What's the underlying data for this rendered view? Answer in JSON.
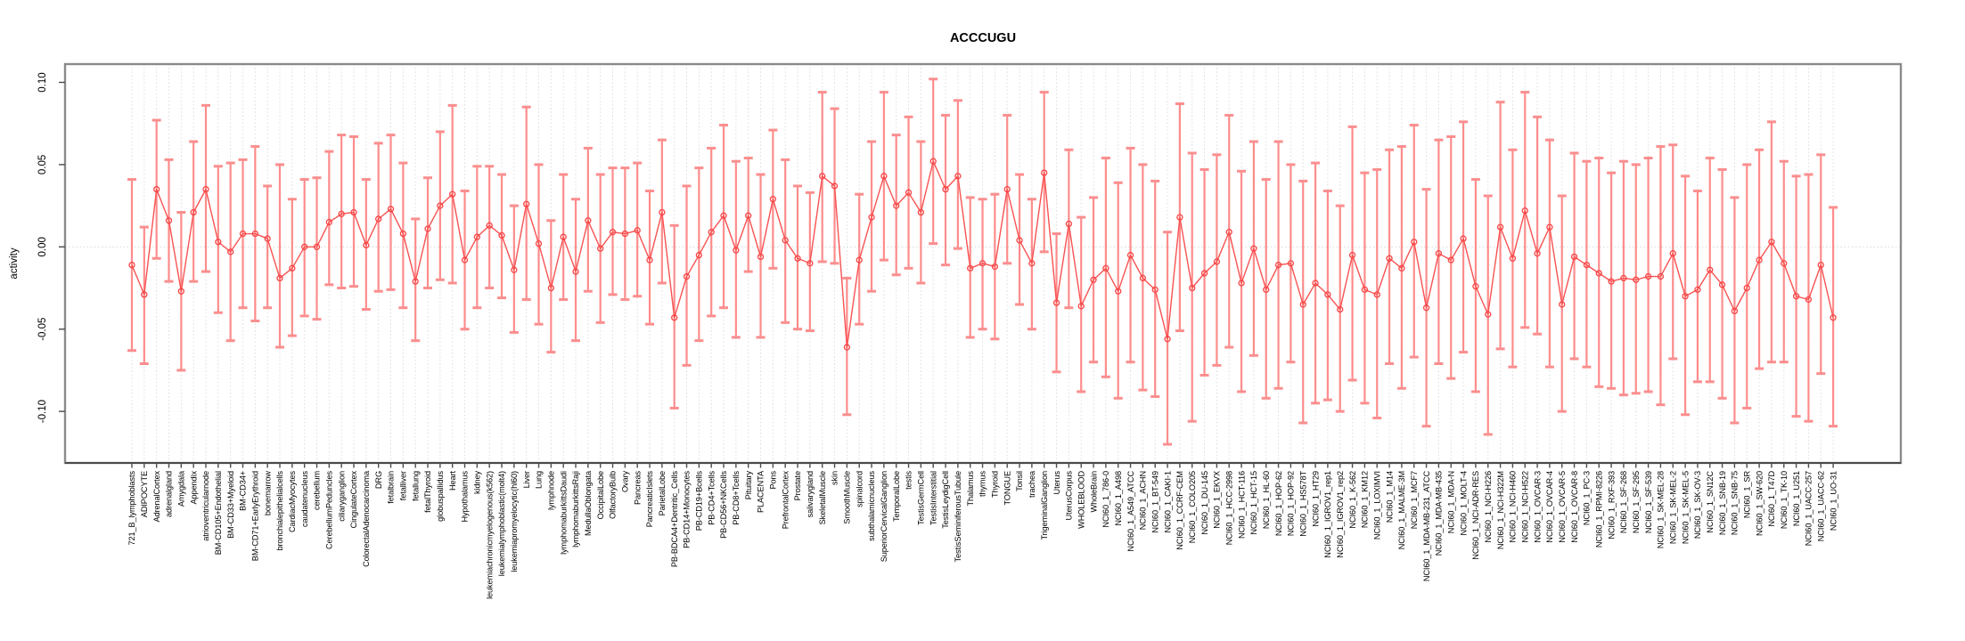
{
  "title": "ACCCUGU",
  "y_axis": {
    "label": "activity",
    "ticks": [
      0.1,
      0.05,
      0.0,
      -0.05,
      -0.1
    ],
    "tick_labels": [
      "0.10",
      "0.05",
      "0.00",
      "-0.05",
      "-0.10"
    ]
  },
  "colors": {
    "series_line": "#f85252",
    "point_stroke": "#f74545",
    "error_bar": "rgba(255,116,116,0.82)",
    "error_cap": "#fb8e8e",
    "grid": "#dcdcdc",
    "axis_box": "#8a8a8a",
    "background": "#ffffff"
  },
  "chart_data": {
    "type": "line",
    "error_bars": true,
    "title": "ACCCUGU",
    "xlabel": "",
    "ylabel": "activity",
    "ylim": [
      -0.13,
      0.11
    ],
    "grid": "vertical-dotted-per-category",
    "categories": [
      "721_B_lymphoblasts",
      "ADIPOCYTE",
      "AdrenalCortex",
      "adrenalgland",
      "Amygdala",
      "Appendix",
      "atrioventricularnode",
      "BM-CD105+Endothelial",
      "BM-CD33+Myeloid",
      "BM-CD34+",
      "BM-CD71+EarlyErythroid",
      "bonemarrow",
      "bronchialepithelialcells",
      "CardiacMyocytes",
      "caudatenucleus",
      "cerebellum",
      "CerebellumPeduncles",
      "ciliaryganglion",
      "CingulateCortex",
      "ColorectalAdenocarcinoma",
      "DRG",
      "fetalbrain",
      "fetalliver",
      "fetallung",
      "fetalThyroid",
      "globuspallidus",
      "Heart",
      "Hypothalamus",
      "kidney",
      "leukemiachronicmyelogenous(k562)",
      "leukemialymphoblastic(molt4)",
      "leukemiapromyelocytic(hl60)",
      "Liver",
      "Lung",
      "lymphnode",
      "lymphomaburkittsDaudi",
      "lymphomaburkittsRaji",
      "MedullaOblongata",
      "OccipitalLobe",
      "OlfactoryBulb",
      "Ovary",
      "Pancreas",
      "PancreaticIslets",
      "ParietalLobe",
      "PB-BDCA4+Dentritic_Cells",
      "PB-CD14+Monocytes",
      "PB-CD19+Bcells",
      "PB-CD4+Tcells",
      "PB-CD56+NKCells",
      "PB-CD8+Tcells",
      "Pituitary",
      "PLACENTA",
      "Pons",
      "PrefrontalCortex",
      "Prostate",
      "salivarygland",
      "SkeletalMuscle",
      "skin",
      "SmoothMuscle",
      "spinalcord",
      "subthalamicnucleus",
      "SuperiorCervicalGanglion",
      "TemporalLobe",
      "testis",
      "TestisGermCell",
      "TestisInterstitial",
      "TestisLeydigCell",
      "TestisSeminiferousTubule",
      "Thalamus",
      "thymus",
      "Thyroid",
      "TONGUE",
      "Tonsil",
      "trachea",
      "TrigeminalGanglion",
      "Uterus",
      "UterusCorpus",
      "WHOLEBLOOD",
      "WholeBrain",
      "NCI60_1_786-0",
      "NCI60_1_A498",
      "NCI60_1_A549_ATCC",
      "NCI60_1_ACHN",
      "NCI60_1_BT-549",
      "NCI60_1_CAKI-1",
      "NCI60_1_CCRF-CEM",
      "NCI60_1_COLO205",
      "NCI60_1_DU-145",
      "NCI60_1_EKVX",
      "NCI60_1_HCC-2998",
      "NCI60_1_HCT-116",
      "NCI60_1_HCT-15",
      "NCI60_1_HL-60",
      "NCI60_1_HOP-62",
      "NCI60_1_HOP-92",
      "NCI60_1_HS578T",
      "NCI60_1_HT29",
      "NCI60_1_IGROV1_rep1",
      "NCI60_1_IGROV1_rep2",
      "NCI60_1_K-562",
      "NCI60_1_KM12",
      "NCI60_1_LOXIMVI",
      "NCI60_1_M14",
      "NCI60_1_MALME-3M",
      "NCI60_1_MCF7",
      "NCI60_1_MDA-MB-231_ATCC",
      "NCI60_1_MDA-MB-435",
      "NCI60_1_MDA-N",
      "NCI60_1_MOLT-4",
      "NCI60_1_NCI-ADR-RES",
      "NCI60_1_NCI-H226",
      "NCI60_1_NCI-H322M",
      "NCI60_1_NCI-H460",
      "NCI60_1_NCI-H522",
      "NCI60_1_OVCAR-3",
      "NCI60_1_OVCAR-4",
      "NCI60_1_OVCAR-5",
      "NCI60_1_OVCAR-8",
      "NCI60_1_PC-3",
      "NCI60_1_RPMI-8226",
      "NCI60_1_RXF-393",
      "NCI60_1_SF-268",
      "NCI60_1_SF-295",
      "NCI60_1_SF-539",
      "NCI60_1_SK-MEL-28",
      "NCI60_1_SK-MEL-2",
      "NCI60_1_SK-MEL-5",
      "NCI60_1_SK-OV-3",
      "NCI60_1_SN12C",
      "NCI60_1_SNB-19",
      "NCI60_1_SNB-75",
      "NCI60_1_SR",
      "NCI60_1_SW-620",
      "NCI60_1_T47D",
      "NCI60_1_TK-10",
      "NCI60_1_U251",
      "NCI60_1_UACC-257",
      "NCI60_1_UACC-62",
      "NCI60_1_UO-31"
    ],
    "series": [
      {
        "name": "activity",
        "values": [
          -0.011,
          -0.029,
          0.035,
          0.016,
          -0.027,
          0.021,
          0.035,
          0.003,
          -0.003,
          0.008,
          0.008,
          0.005,
          -0.019,
          -0.013,
          0.0,
          0.0,
          0.015,
          0.02,
          0.021,
          0.001,
          0.017,
          0.023,
          0.008,
          -0.021,
          0.011,
          0.025,
          0.032,
          -0.008,
          0.006,
          0.013,
          0.007,
          -0.014,
          0.026,
          0.002,
          -0.025,
          0.006,
          -0.015,
          0.016,
          -0.001,
          0.009,
          0.008,
          0.01,
          -0.008,
          0.021,
          -0.043,
          -0.018,
          -0.005,
          0.009,
          0.019,
          -0.002,
          0.019,
          -0.006,
          0.029,
          0.004,
          -0.007,
          -0.01,
          0.043,
          0.037,
          -0.061,
          -0.008,
          0.018,
          0.043,
          0.025,
          0.033,
          0.021,
          0.052,
          0.035,
          0.043,
          -0.013,
          -0.01,
          -0.012,
          0.035,
          0.004,
          -0.01,
          0.045,
          -0.034,
          0.014,
          -0.036,
          -0.02,
          -0.013,
          -0.027,
          -0.005,
          -0.019,
          -0.026,
          -0.056,
          0.018,
          -0.025,
          -0.016,
          -0.009,
          0.009,
          -0.022,
          -0.001,
          -0.026,
          -0.011,
          -0.01,
          -0.035,
          -0.022,
          -0.029,
          -0.038,
          -0.005,
          -0.026,
          -0.029,
          -0.007,
          -0.013,
          0.003,
          -0.037,
          -0.004,
          -0.008,
          0.005,
          -0.024,
          -0.041,
          0.012,
          -0.007,
          0.022,
          -0.004,
          0.012,
          -0.035,
          -0.006,
          -0.011,
          -0.016,
          -0.021,
          -0.019,
          -0.02,
          -0.018,
          -0.018,
          -0.004,
          -0.03,
          -0.026,
          -0.014,
          -0.023,
          -0.039,
          -0.025,
          -0.008,
          0.003,
          -0.01,
          -0.03,
          -0.032,
          -0.011,
          -0.043
        ]
      }
    ],
    "error_high": [
      0.041,
      0.012,
      0.077,
      0.053,
      0.021,
      0.064,
      0.086,
      0.049,
      0.051,
      0.053,
      0.061,
      0.037,
      0.05,
      0.029,
      0.041,
      0.042,
      0.058,
      0.068,
      0.067,
      0.041,
      0.063,
      0.068,
      0.051,
      0.017,
      0.042,
      0.07,
      0.086,
      0.034,
      0.049,
      0.049,
      0.044,
      0.025,
      0.085,
      0.05,
      0.016,
      0.044,
      0.029,
      0.06,
      0.044,
      0.048,
      0.048,
      0.051,
      0.034,
      0.065,
      0.013,
      0.037,
      0.048,
      0.06,
      0.074,
      0.052,
      0.054,
      0.044,
      0.071,
      0.053,
      0.037,
      0.033,
      0.094,
      0.084,
      -0.019,
      0.032,
      0.064,
      0.094,
      0.068,
      0.079,
      0.064,
      0.102,
      0.08,
      0.089,
      0.03,
      0.029,
      0.032,
      0.08,
      0.044,
      0.029,
      0.094,
      0.008,
      0.059,
      0.018,
      0.03,
      0.054,
      0.039,
      0.06,
      0.05,
      0.04,
      0.009,
      0.087,
      0.057,
      0.047,
      0.056,
      0.08,
      0.046,
      0.064,
      0.041,
      0.064,
      0.05,
      0.04,
      0.051,
      0.034,
      0.025,
      0.073,
      0.045,
      0.047,
      0.059,
      0.061,
      0.074,
      0.035,
      0.065,
      0.067,
      0.076,
      0.041,
      0.031,
      0.088,
      0.059,
      0.094,
      0.079,
      0.065,
      0.031,
      0.057,
      0.052,
      0.054,
      0.045,
      0.052,
      0.05,
      0.054,
      0.061,
      0.062,
      0.043,
      0.034,
      0.054,
      0.047,
      0.03,
      0.05,
      0.059,
      0.076,
      0.052,
      0.043,
      0.044,
      0.056,
      0.024
    ],
    "error_low": [
      -0.063,
      -0.071,
      -0.007,
      -0.021,
      -0.075,
      -0.021,
      -0.015,
      -0.04,
      -0.057,
      -0.037,
      -0.045,
      -0.037,
      -0.061,
      -0.054,
      -0.042,
      -0.044,
      -0.023,
      -0.025,
      -0.024,
      -0.038,
      -0.027,
      -0.026,
      -0.037,
      -0.057,
      -0.025,
      -0.02,
      -0.022,
      -0.05,
      -0.037,
      -0.025,
      -0.031,
      -0.052,
      -0.032,
      -0.047,
      -0.064,
      -0.032,
      -0.057,
      -0.027,
      -0.046,
      -0.029,
      -0.032,
      -0.03,
      -0.047,
      -0.022,
      -0.098,
      -0.072,
      -0.057,
      -0.042,
      -0.037,
      -0.055,
      -0.015,
      -0.055,
      -0.013,
      -0.046,
      -0.05,
      -0.051,
      -0.009,
      -0.01,
      -0.102,
      -0.047,
      -0.027,
      -0.008,
      -0.017,
      -0.013,
      -0.022,
      0.002,
      -0.011,
      -0.001,
      -0.055,
      -0.05,
      -0.056,
      -0.01,
      -0.035,
      -0.05,
      -0.003,
      -0.076,
      -0.037,
      -0.088,
      -0.07,
      -0.079,
      -0.092,
      -0.07,
      -0.087,
      -0.091,
      -0.12,
      -0.051,
      -0.106,
      -0.078,
      -0.072,
      -0.061,
      -0.088,
      -0.066,
      -0.092,
      -0.086,
      -0.07,
      -0.107,
      -0.095,
      -0.093,
      -0.1,
      -0.081,
      -0.095,
      -0.104,
      -0.071,
      -0.086,
      -0.067,
      -0.109,
      -0.071,
      -0.08,
      -0.064,
      -0.088,
      -0.114,
      -0.062,
      -0.073,
      -0.049,
      -0.053,
      -0.073,
      -0.1,
      -0.068,
      -0.073,
      -0.085,
      -0.086,
      -0.09,
      -0.089,
      -0.088,
      -0.096,
      -0.068,
      -0.102,
      -0.082,
      -0.082,
      -0.092,
      -0.107,
      -0.098,
      -0.074,
      -0.07,
      -0.07,
      -0.103,
      -0.106,
      -0.077,
      -0.109
    ],
    "legend": "none"
  }
}
